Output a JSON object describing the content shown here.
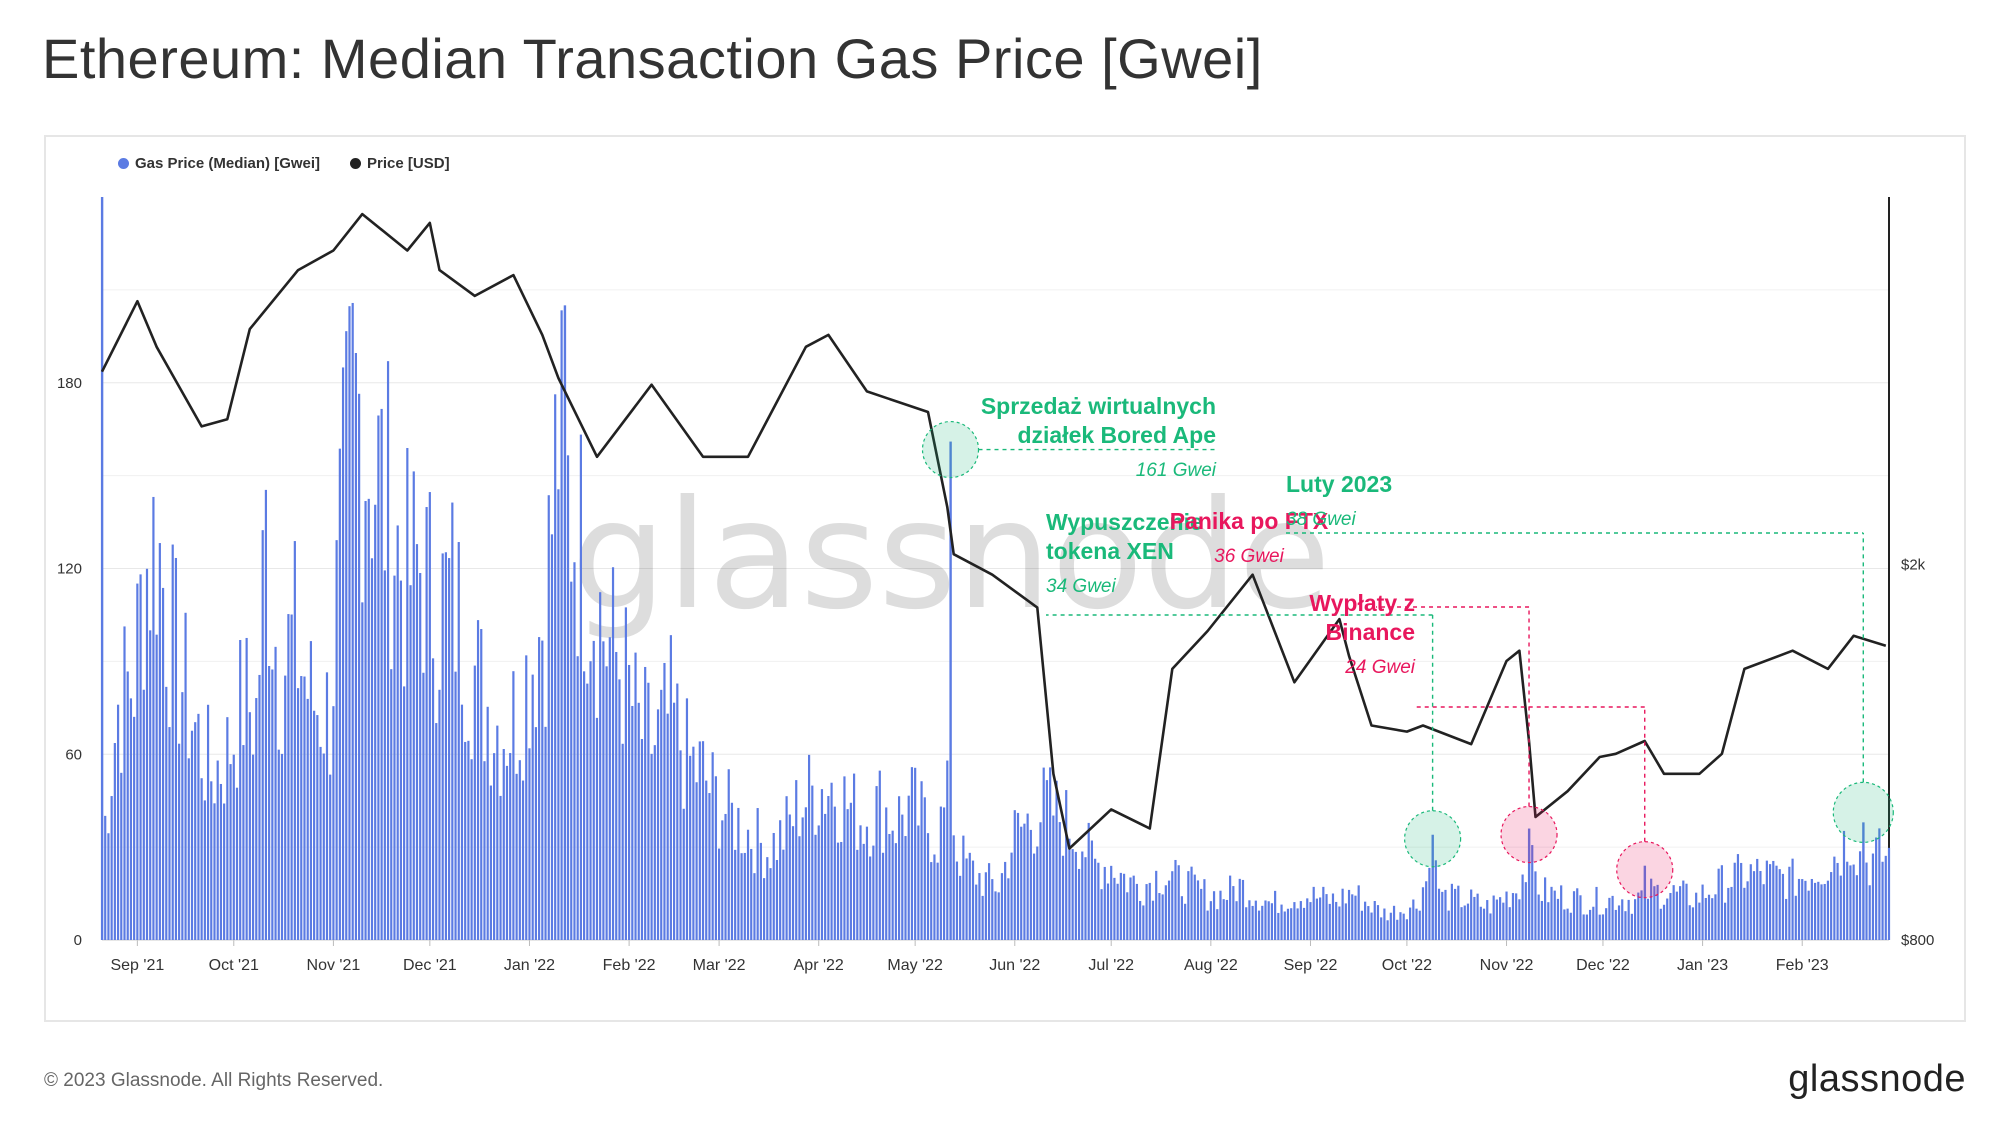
{
  "page": {
    "title": "Ethereum: Median Transaction Gas Price [Gwei]",
    "copyright": "© 2023 Glassnode. All Rights Reserved.",
    "logo": "glassnode",
    "watermark": "glassnode"
  },
  "legend": {
    "gas_label": "Gas Price (Median) [Gwei]",
    "price_label": "Price [USD]"
  },
  "colors": {
    "gas": "#5b7be3",
    "price": "#222222",
    "green": "#1ab97a",
    "pink": "#e8175d"
  },
  "annotations": [
    {
      "title_lines": [
        "Sprzedaż wirtualnych",
        "działek Bored Ape"
      ],
      "value": "161 Gwei",
      "color": "green"
    },
    {
      "title_lines": [
        "Wypuszczenie",
        "tokena XEN"
      ],
      "value": "34 Gwei",
      "color": "green"
    },
    {
      "title_lines": [
        "Panika po FTX"
      ],
      "value": "36 Gwei",
      "color": "pink"
    },
    {
      "title_lines": [
        "Wypłaty z",
        "Binance"
      ],
      "value": "24 Gwei",
      "color": "pink"
    },
    {
      "title_lines": [
        "Luty 2023"
      ],
      "value": "38 Gwei",
      "color": "green"
    }
  ],
  "chart_data": {
    "type": "bar",
    "title": "Ethereum: Median Transaction Gas Price [Gwei]",
    "x_range": [
      "2021-08-21",
      "2023-02-28"
    ],
    "x_ticks": [
      "Sep '21",
      "Oct '21",
      "Nov '21",
      "Dec '21",
      "Jan '22",
      "Feb '22",
      "Mar '22",
      "Apr '22",
      "May '22",
      "Jun '22",
      "Jul '22",
      "Aug '22",
      "Sep '22",
      "Oct '22",
      "Nov '22",
      "Dec '22",
      "Jan '23",
      "Feb '23"
    ],
    "y_left": {
      "label": "",
      "ticks": [
        0,
        60,
        120,
        180
      ],
      "range": [
        0,
        240
      ]
    },
    "y_right": {
      "label": "",
      "scale": "log",
      "ticks": [
        800,
        2000
      ],
      "tick_labels": [
        "$800",
        "$2k"
      ],
      "range": [
        800,
        4900
      ]
    },
    "grid": true,
    "legend_position": "top-left",
    "series": [
      {
        "name": "Gas Price (Median) [Gwei]",
        "axis": "left",
        "type": "bar",
        "points": [
          [
            "2021-08-21",
            30
          ],
          [
            "2021-08-26",
            78
          ],
          [
            "2021-08-31",
            88
          ],
          [
            "2021-09-03",
            120
          ],
          [
            "2021-09-07",
            135
          ],
          [
            "2021-09-10",
            110
          ],
          [
            "2021-09-14",
            90
          ],
          [
            "2021-09-19",
            70
          ],
          [
            "2021-09-24",
            55
          ],
          [
            "2021-09-29",
            62
          ],
          [
            "2021-10-04",
            80
          ],
          [
            "2021-10-08",
            75
          ],
          [
            "2021-10-11",
            135
          ],
          [
            "2021-10-15",
            90
          ],
          [
            "2021-10-20",
            100
          ],
          [
            "2021-10-25",
            80
          ],
          [
            "2021-10-31",
            75
          ],
          [
            "2021-11-03",
            130
          ],
          [
            "2021-11-07",
            180
          ],
          [
            "2021-11-09",
            175
          ],
          [
            "2021-11-13",
            160
          ],
          [
            "2021-11-18",
            145
          ],
          [
            "2021-11-23",
            120
          ],
          [
            "2021-11-28",
            125
          ],
          [
            "2021-12-03",
            110
          ],
          [
            "2021-12-08",
            115
          ],
          [
            "2021-12-13",
            95
          ],
          [
            "2021-12-18",
            80
          ],
          [
            "2021-12-23",
            70
          ],
          [
            "2021-12-28",
            75
          ],
          [
            "2022-01-02",
            95
          ],
          [
            "2022-01-06",
            110
          ],
          [
            "2022-01-10",
            170
          ],
          [
            "2022-01-12",
            150
          ],
          [
            "2022-01-15",
            140
          ],
          [
            "2022-01-20",
            120
          ],
          [
            "2022-01-25",
            100
          ],
          [
            "2022-01-30",
            90
          ],
          [
            "2022-02-04",
            70
          ],
          [
            "2022-02-09",
            65
          ],
          [
            "2022-02-14",
            75
          ],
          [
            "2022-02-19",
            60
          ],
          [
            "2022-02-24",
            55
          ],
          [
            "2022-03-01",
            45
          ],
          [
            "2022-03-06",
            40
          ],
          [
            "2022-03-11",
            35
          ],
          [
            "2022-03-16",
            30
          ],
          [
            "2022-03-21",
            35
          ],
          [
            "2022-03-26",
            45
          ],
          [
            "2022-03-31",
            50
          ],
          [
            "2022-04-05",
            52
          ],
          [
            "2022-04-10",
            45
          ],
          [
            "2022-04-15",
            40
          ],
          [
            "2022-04-20",
            45
          ],
          [
            "2022-04-25",
            40
          ],
          [
            "2022-04-30",
            45
          ],
          [
            "2022-05-03",
            40
          ],
          [
            "2022-05-08",
            35
          ],
          [
            "2022-05-12",
            48
          ],
          [
            "2022-05-14",
            30
          ],
          [
            "2022-05-17",
            25
          ],
          [
            "2022-05-22",
            20
          ],
          [
            "2022-05-27",
            18
          ],
          [
            "2022-06-01",
            35
          ],
          [
            "2022-06-06",
            40
          ],
          [
            "2022-06-11",
            45
          ],
          [
            "2022-06-16",
            40
          ],
          [
            "2022-06-21",
            35
          ],
          [
            "2022-06-26",
            25
          ],
          [
            "2022-07-01",
            25
          ],
          [
            "2022-07-06",
            20
          ],
          [
            "2022-07-11",
            18
          ],
          [
            "2022-07-16",
            22
          ],
          [
            "2022-07-21",
            20
          ],
          [
            "2022-07-26",
            18
          ],
          [
            "2022-07-31",
            15
          ],
          [
            "2022-08-05",
            15
          ],
          [
            "2022-08-10",
            18
          ],
          [
            "2022-08-15",
            15
          ],
          [
            "2022-08-20",
            12
          ],
          [
            "2022-08-25",
            14
          ],
          [
            "2022-08-30",
            15
          ],
          [
            "2022-09-04",
            14
          ],
          [
            "2022-09-09",
            13
          ],
          [
            "2022-09-14",
            16
          ],
          [
            "2022-09-19",
            12
          ],
          [
            "2022-09-24",
            9
          ],
          [
            "2022-09-29",
            10
          ],
          [
            "2022-10-04",
            12
          ],
          [
            "2022-10-09",
            26
          ],
          [
            "2022-10-12",
            14
          ],
          [
            "2022-10-16",
            14
          ],
          [
            "2022-10-21",
            13
          ],
          [
            "2022-10-26",
            11
          ],
          [
            "2022-10-31",
            14
          ],
          [
            "2022-11-04",
            17
          ],
          [
            "2022-11-08",
            26
          ],
          [
            "2022-11-12",
            16
          ],
          [
            "2022-11-16",
            15
          ],
          [
            "2022-11-21",
            14
          ],
          [
            "2022-11-26",
            13
          ],
          [
            "2022-12-01",
            13
          ],
          [
            "2022-12-06",
            14
          ],
          [
            "2022-12-11",
            13
          ],
          [
            "2022-12-15",
            16
          ],
          [
            "2022-12-20",
            16
          ],
          [
            "2022-12-25",
            15
          ],
          [
            "2022-12-30",
            14
          ],
          [
            "2023-01-04",
            17
          ],
          [
            "2023-01-09",
            20
          ],
          [
            "2023-01-14",
            22
          ],
          [
            "2023-01-19",
            22
          ],
          [
            "2023-01-24",
            21
          ],
          [
            "2023-01-29",
            20
          ],
          [
            "2023-02-03",
            22
          ],
          [
            "2023-02-08",
            25
          ],
          [
            "2023-02-13",
            30
          ],
          [
            "2023-02-16",
            36
          ],
          [
            "2023-02-20",
            25
          ],
          [
            "2023-02-25",
            28
          ]
        ],
        "peaks": [
          [
            "2021-08-21",
            240
          ],
          [
            "2022-01-12",
            205
          ],
          [
            "2022-05-12",
            161
          ],
          [
            "2022-10-09",
            34
          ],
          [
            "2022-11-08",
            36
          ],
          [
            "2022-12-14",
            24
          ],
          [
            "2023-02-20",
            38
          ]
        ]
      },
      {
        "name": "Price [USD]",
        "axis": "right",
        "type": "line",
        "points": [
          [
            "2021-08-21",
            3200
          ],
          [
            "2021-09-01",
            3800
          ],
          [
            "2021-09-07",
            3400
          ],
          [
            "2021-09-21",
            2800
          ],
          [
            "2021-09-29",
            2850
          ],
          [
            "2021-10-06",
            3550
          ],
          [
            "2021-10-21",
            4100
          ],
          [
            "2021-11-01",
            4300
          ],
          [
            "2021-11-10",
            4700
          ],
          [
            "2021-11-24",
            4300
          ],
          [
            "2021-12-01",
            4600
          ],
          [
            "2021-12-04",
            4100
          ],
          [
            "2021-12-15",
            3850
          ],
          [
            "2021-12-27",
            4050
          ],
          [
            "2022-01-05",
            3500
          ],
          [
            "2022-01-10",
            3150
          ],
          [
            "2022-01-22",
            2600
          ],
          [
            "2022-02-08",
            3100
          ],
          [
            "2022-02-24",
            2600
          ],
          [
            "2022-03-10",
            2600
          ],
          [
            "2022-03-28",
            3400
          ],
          [
            "2022-04-04",
            3500
          ],
          [
            "2022-04-16",
            3050
          ],
          [
            "2022-05-05",
            2900
          ],
          [
            "2022-05-11",
            2300
          ],
          [
            "2022-05-13",
            2050
          ],
          [
            "2022-05-25",
            1950
          ],
          [
            "2022-06-08",
            1800
          ],
          [
            "2022-06-13",
            1200
          ],
          [
            "2022-06-18",
            1000
          ],
          [
            "2022-07-01",
            1100
          ],
          [
            "2022-07-13",
            1050
          ],
          [
            "2022-07-20",
            1550
          ],
          [
            "2022-07-31",
            1700
          ],
          [
            "2022-08-14",
            1950
          ],
          [
            "2022-08-27",
            1500
          ],
          [
            "2022-09-10",
            1750
          ],
          [
            "2022-09-13",
            1600
          ],
          [
            "2022-09-20",
            1350
          ],
          [
            "2022-10-01",
            1330
          ],
          [
            "2022-10-06",
            1350
          ],
          [
            "2022-10-21",
            1290
          ],
          [
            "2022-11-01",
            1580
          ],
          [
            "2022-11-05",
            1620
          ],
          [
            "2022-11-08",
            1300
          ],
          [
            "2022-11-10",
            1080
          ],
          [
            "2022-11-20",
            1150
          ],
          [
            "2022-11-30",
            1250
          ],
          [
            "2022-12-05",
            1260
          ],
          [
            "2022-12-14",
            1300
          ],
          [
            "2022-12-20",
            1200
          ],
          [
            "2022-12-31",
            1200
          ],
          [
            "2023-01-07",
            1260
          ],
          [
            "2023-01-14",
            1550
          ],
          [
            "2023-01-29",
            1620
          ],
          [
            "2023-02-09",
            1550
          ],
          [
            "2023-02-17",
            1680
          ],
          [
            "2023-02-27",
            1640
          ]
        ]
      }
    ]
  }
}
